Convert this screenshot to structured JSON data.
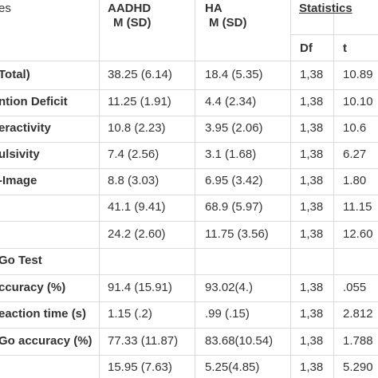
{
  "header": {
    "col0": "es",
    "col1_line1": "AADHD",
    "col1_line2": "M (SD)",
    "col2_line1": "HA",
    "col2_line2": "M (SD)",
    "col3": "Statistics",
    "sub_df": "Df",
    "sub_t": "t"
  },
  "rows": [
    {
      "label": "Total)",
      "aadhd": "38.25 (6.14)",
      "ha": "18.4 (5.35)",
      "df": "1,38",
      "t": "10.89"
    },
    {
      "label": "ntion Deficit",
      "aadhd": "11.25 (1.91)",
      "ha": "4.4 (2.34)",
      "df": "1,38",
      "t": "10.10"
    },
    {
      "label": "eractivity",
      "aadhd": "10.8 (2.23)",
      "ha": "3.95 (2.06)",
      "df": "1,38",
      "t": "10.6"
    },
    {
      "label": "ulsivity",
      "aadhd": "7.4 (2.56)",
      "ha": "3.1 (1.68)",
      "df": "1,38",
      "t": "6.27"
    },
    {
      "label": "-Image",
      "aadhd": "8.8 (3.03)",
      "ha": "6.95 (3.42)",
      "df": "1,38",
      "t": "1.80"
    },
    {
      "label": "",
      "aadhd": "41.1 (9.41)",
      "ha": "68.9 (5.97)",
      "df": "1,38",
      "t": "11.15"
    },
    {
      "label": "",
      "aadhd": "24.2 (2.60)",
      "ha": "11.75 (3.56)",
      "df": "1,38",
      "t": "12.60"
    },
    {
      "label": "Go Test",
      "aadhd": "",
      "ha": "",
      "df": "",
      "t": ""
    },
    {
      "label": "ccuracy (%)",
      "aadhd": "91.4 (15.91)",
      "ha": "93.02(4.)",
      "df": "1,38",
      "t": ".055"
    },
    {
      "label": "eaction time (s)",
      "aadhd": "1.15 (.2)",
      "ha": ".99 (.15)",
      "df": "1,38",
      "t": "2.812"
    },
    {
      "label": "Go accuracy (%)",
      "aadhd": "77.33 (11.87)",
      "ha": "83.68(10.54)",
      "df": "1,38",
      "t": "1.788"
    },
    {
      "label": "",
      "aadhd": "15.95 (7.63)",
      "ha": "5.25(4.85)",
      "df": "1,38",
      "t": "5.290"
    }
  ]
}
